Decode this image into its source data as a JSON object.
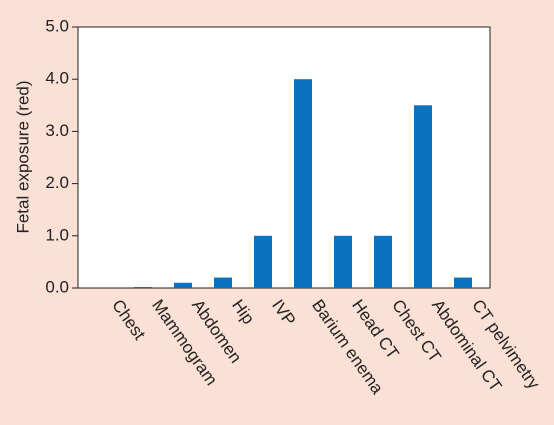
{
  "chart_data": {
    "type": "bar",
    "y_label": "Fetal exposure (red)",
    "categories": [
      "Chest",
      "Mammogram",
      "Abdomen",
      "Hip",
      "IVP",
      "Barium enema",
      "Head CT",
      "Chest CT",
      "Abdominal CT",
      "CT pelvimetry"
    ],
    "values": [
      0,
      0.02,
      0.1,
      0.2,
      1.0,
      4.0,
      1.0,
      1.0,
      3.5,
      0.2
    ],
    "color": "#0b72c0",
    "ylim": [
      0,
      5
    ],
    "yticks": [
      {
        "value": 0,
        "label": "0.0"
      },
      {
        "value": 1,
        "label": "1.0"
      },
      {
        "value": 2,
        "label": "2.0"
      },
      {
        "value": 3,
        "label": "3.0"
      },
      {
        "value": 4,
        "label": "4.0"
      },
      {
        "value": 5,
        "label": "5.0"
      }
    ]
  }
}
